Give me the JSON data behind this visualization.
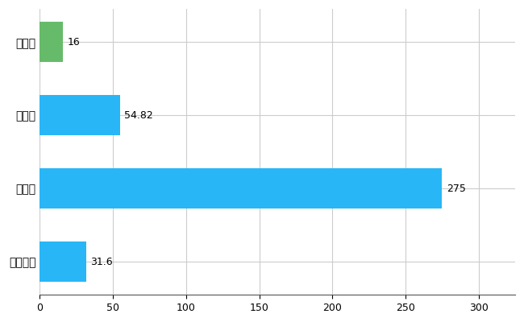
{
  "categories": [
    "宍粟市",
    "県平均",
    "県最大",
    "全国平均"
  ],
  "values": [
    16,
    54.82,
    275,
    31.6
  ],
  "bar_colors": [
    "#66bb6a",
    "#29b6f6",
    "#29b6f6",
    "#29b6f6"
  ],
  "xlim": [
    0,
    325
  ],
  "xticks": [
    0,
    50,
    100,
    150,
    200,
    250,
    300
  ],
  "background_color": "#ffffff",
  "grid_color": "#cccccc",
  "label_fontsize": 10,
  "value_fontsize": 9,
  "bar_height": 0.55
}
